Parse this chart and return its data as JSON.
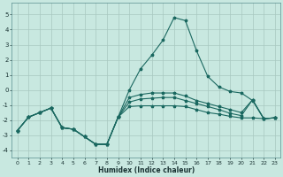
{
  "xlabel": "Humidex (Indice chaleur)",
  "xlim": [
    -0.5,
    23.5
  ],
  "ylim": [
    -4.5,
    5.8
  ],
  "background_color": "#c8e8e0",
  "grid_color": "#a8c8c0",
  "line_color": "#1a6860",
  "x": [
    0,
    1,
    2,
    3,
    4,
    5,
    6,
    7,
    8,
    9,
    10,
    11,
    12,
    13,
    14,
    15,
    16,
    17,
    18,
    19,
    20,
    21,
    22,
    23
  ],
  "curve_main": [
    -2.7,
    -1.8,
    -1.5,
    -1.2,
    -2.5,
    -2.6,
    -3.1,
    -3.6,
    -3.6,
    -1.8,
    0.0,
    1.4,
    2.3,
    3.3,
    4.8,
    4.6,
    2.6,
    0.9,
    0.2,
    -0.1,
    -0.2,
    -0.7,
    -1.9,
    -1.85
  ],
  "curve_mid1": [
    -2.7,
    -1.8,
    -1.5,
    -1.2,
    -2.5,
    -2.6,
    -3.1,
    -3.6,
    -3.6,
    -1.8,
    -0.5,
    -0.3,
    -0.2,
    -0.2,
    -0.2,
    -0.4,
    -0.7,
    -0.9,
    -1.1,
    -1.3,
    -1.5,
    -0.65,
    -1.9,
    -1.85
  ],
  "curve_mid2": [
    -2.7,
    -1.8,
    -1.5,
    -1.2,
    -2.5,
    -2.6,
    -3.1,
    -3.6,
    -3.6,
    -1.8,
    -0.8,
    -0.6,
    -0.55,
    -0.5,
    -0.5,
    -0.7,
    -0.9,
    -1.1,
    -1.3,
    -1.55,
    -1.7,
    -0.65,
    -1.9,
    -1.85
  ],
  "curve_flat": [
    -2.7,
    -1.8,
    -1.5,
    -1.2,
    -2.5,
    -2.6,
    -3.1,
    -3.6,
    -3.6,
    -1.8,
    -1.1,
    -1.05,
    -1.05,
    -1.05,
    -1.05,
    -1.1,
    -1.3,
    -1.5,
    -1.6,
    -1.75,
    -1.85,
    -1.85,
    -1.9,
    -1.85
  ],
  "yticks": [
    -4,
    -3,
    -2,
    -1,
    0,
    1,
    2,
    3,
    4,
    5
  ],
  "xticks": [
    0,
    1,
    2,
    3,
    4,
    5,
    6,
    7,
    8,
    9,
    10,
    11,
    12,
    13,
    14,
    15,
    16,
    17,
    18,
    19,
    20,
    21,
    22,
    23
  ]
}
